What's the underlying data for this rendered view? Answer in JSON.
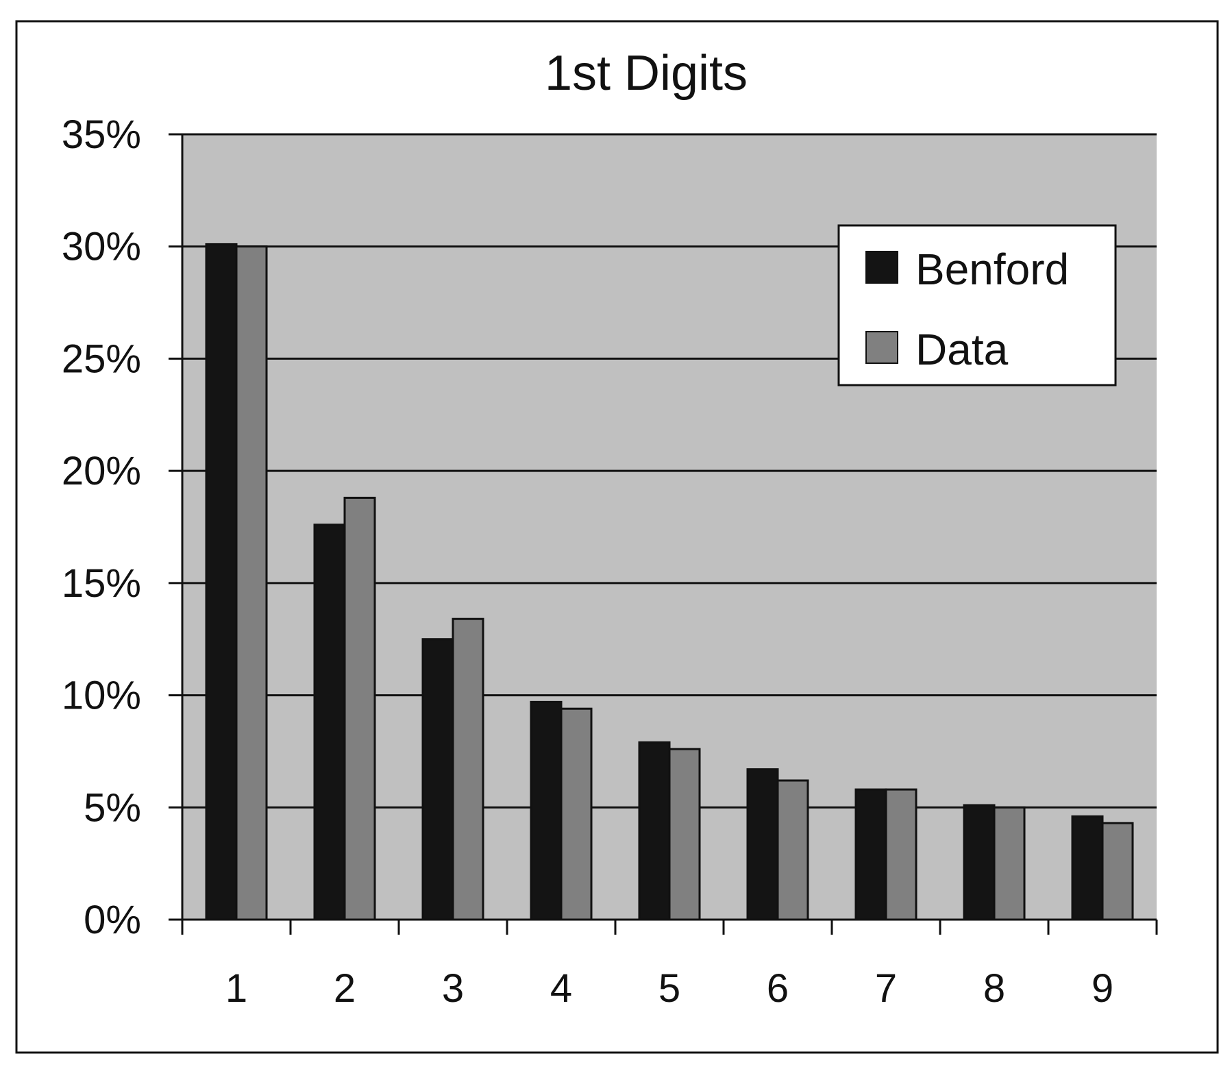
{
  "chart_data": {
    "type": "bar",
    "title": "1st Digits",
    "xlabel": "",
    "ylabel": "",
    "categories": [
      "1",
      "2",
      "3",
      "4",
      "5",
      "6",
      "7",
      "8",
      "9"
    ],
    "series": [
      {
        "name": "Benford",
        "color": "#141414",
        "values": [
          30.1,
          17.6,
          12.5,
          9.7,
          7.9,
          6.7,
          5.8,
          5.1,
          4.6
        ]
      },
      {
        "name": "Data",
        "color": "#808080",
        "values": [
          30.0,
          18.8,
          13.4,
          9.4,
          7.6,
          6.2,
          5.8,
          5.0,
          4.3
        ]
      }
    ],
    "ylim": [
      0,
      35
    ],
    "yticks": [
      0,
      5,
      10,
      15,
      20,
      25,
      30,
      35
    ],
    "ytick_labels": [
      "0%",
      "5%",
      "10%",
      "15%",
      "20%",
      "25%",
      "30%",
      "35%"
    ],
    "grid": true,
    "plot_background": "#c0c0c0",
    "legend_position": "top-right"
  }
}
